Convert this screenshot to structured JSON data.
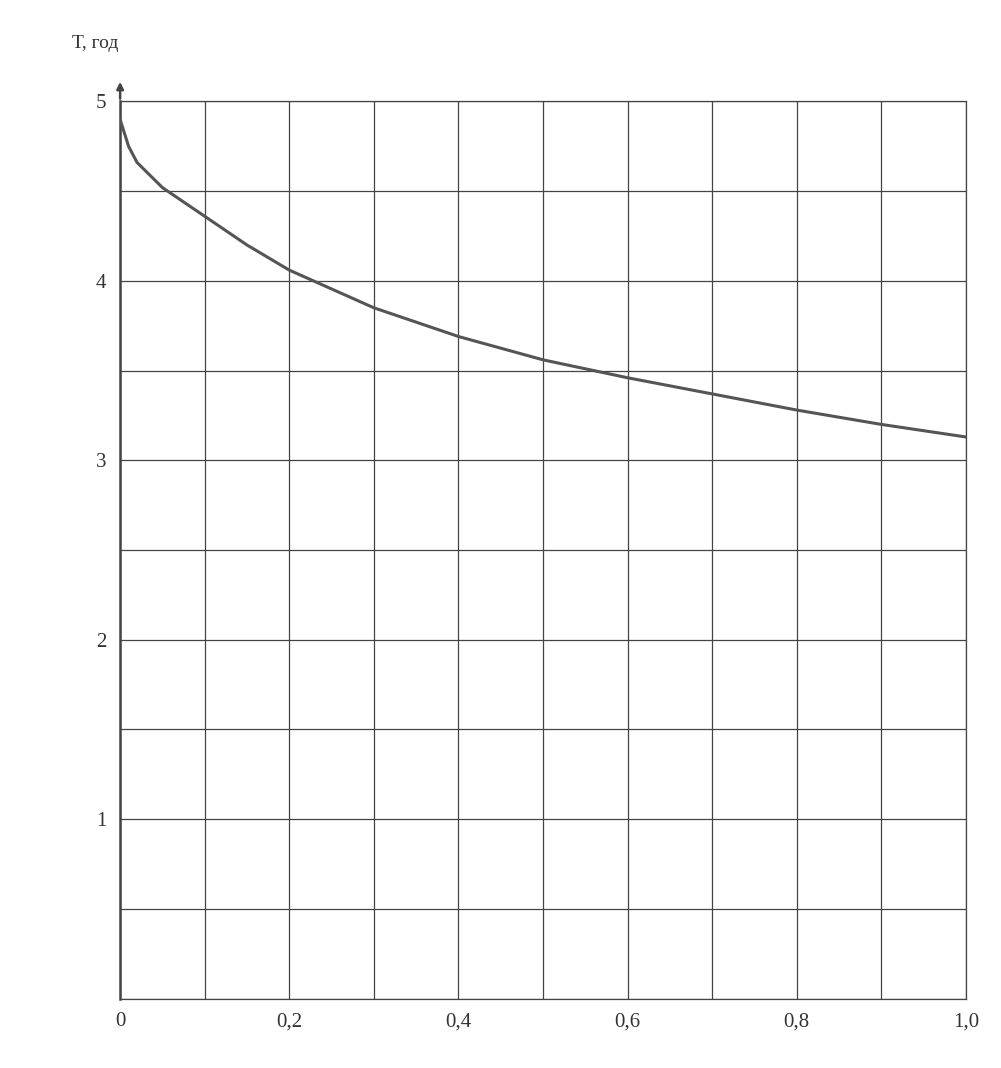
{
  "chart_data": {
    "type": "line",
    "y_label": "Т, год",
    "x": [
      0,
      0.01,
      0.02,
      0.05,
      0.1,
      0.15,
      0.2,
      0.3,
      0.4,
      0.5,
      0.6,
      0.7,
      0.8,
      0.9,
      1.0
    ],
    "values": [
      4.9,
      4.75,
      4.66,
      4.52,
      4.36,
      4.2,
      4.06,
      3.85,
      3.69,
      3.56,
      3.46,
      3.37,
      3.28,
      3.2,
      3.13
    ],
    "color": "#555555",
    "xlim": [
      0,
      1
    ],
    "ylim": [
      0,
      5
    ],
    "xticks": [
      0,
      {
        "value": 0.2,
        "label": "0,2"
      },
      {
        "value": 0.4,
        "label": "0,4"
      },
      {
        "value": 0.6,
        "label": "0,6"
      },
      {
        "value": 0.8,
        "label": "0,8"
      },
      {
        "value": 1,
        "label": "1,0"
      }
    ],
    "yticks": [
      1,
      2,
      3,
      4,
      5
    ],
    "grid": true
  }
}
